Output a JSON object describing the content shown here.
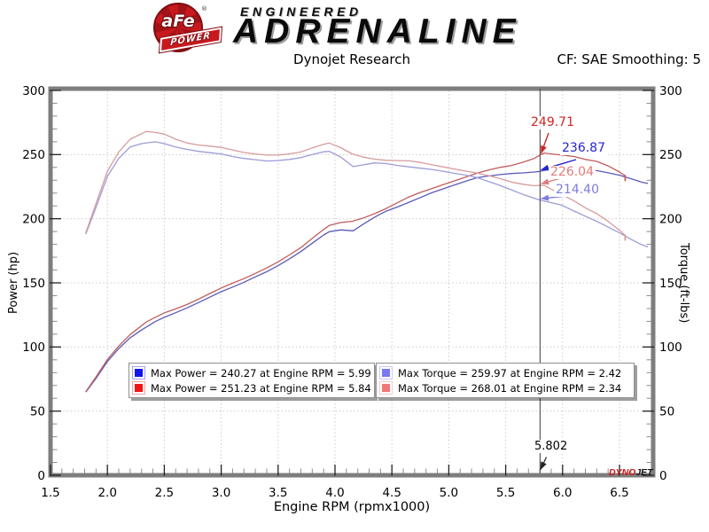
{
  "header": {
    "brand": {
      "logo_text": "aFe",
      "logo_reg": "®",
      "logo_sub": "POWER",
      "tagline_top": "ENGINEERED",
      "tagline_main": "ADRENALINE"
    },
    "title": "Dynojet Research",
    "smoothing": "CF: SAE Smoothing: 5"
  },
  "chart_data": {
    "type": "line",
    "title": "Dynojet Research",
    "xlabel": "Engine RPM (rpmx1000)",
    "ylabel_left": "Power (hp)",
    "ylabel_right": "Torque (ft-lbs)",
    "xlim": [
      1.5,
      6.8
    ],
    "ylim": [
      0,
      300
    ],
    "x_ticks": [
      "1.5",
      "2.0",
      "2.5",
      "3.0",
      "3.5",
      "4.0",
      "4.5",
      "5.0",
      "5.5",
      "6.0",
      "6.5"
    ],
    "y_ticks": [
      "0",
      "50",
      "100",
      "150",
      "200",
      "250",
      "300"
    ],
    "x_minor_step": 0.1,
    "y_minor_step": 10,
    "grid": "dotted",
    "series": [
      {
        "name": "power-run-blue",
        "axis": "left",
        "color": "#5a5ab8",
        "end_tick": false,
        "points": [
          [
            1.81,
            64.8
          ],
          [
            1.9,
            75.6
          ],
          [
            2.0,
            88.7
          ],
          [
            2.1,
            98.8
          ],
          [
            2.2,
            107.2
          ],
          [
            2.3,
            113.2
          ],
          [
            2.42,
            119.8
          ],
          [
            2.5,
            123.1
          ],
          [
            2.6,
            126.7
          ],
          [
            2.7,
            130.5
          ],
          [
            2.8,
            134.6
          ],
          [
            2.9,
            138.9
          ],
          [
            3.0,
            143.1
          ],
          [
            3.1,
            146.7
          ],
          [
            3.2,
            150.5
          ],
          [
            3.3,
            154.6
          ],
          [
            3.4,
            158.7
          ],
          [
            3.5,
            163.4
          ],
          [
            3.6,
            168.7
          ],
          [
            3.7,
            174.4
          ],
          [
            3.8,
            180.9
          ],
          [
            3.9,
            187.3
          ],
          [
            3.95,
            189.9
          ],
          [
            4.05,
            191.3
          ],
          [
            4.16,
            190.6
          ],
          [
            4.25,
            195.8
          ],
          [
            4.35,
            201.3
          ],
          [
            4.45,
            205.9
          ],
          [
            4.55,
            209.2
          ],
          [
            4.65,
            212.8
          ],
          [
            4.75,
            216.5
          ],
          [
            4.85,
            220.2
          ],
          [
            4.95,
            223.3
          ],
          [
            5.05,
            226.3
          ],
          [
            5.15,
            229.3
          ],
          [
            5.25,
            232.0
          ],
          [
            5.35,
            233.3
          ],
          [
            5.45,
            234.4
          ],
          [
            5.55,
            235.2
          ],
          [
            5.65,
            235.7
          ],
          [
            5.75,
            236.4
          ],
          [
            5.802,
            236.87
          ],
          [
            5.9,
            238.8
          ],
          [
            5.99,
            240.27
          ],
          [
            6.1,
            239.3
          ],
          [
            6.2,
            238.5
          ],
          [
            6.3,
            237.5
          ],
          [
            6.4,
            235.8
          ],
          [
            6.5,
            233.9
          ],
          [
            6.6,
            231.2
          ],
          [
            6.7,
            228.4
          ],
          [
            6.75,
            227.5
          ]
        ]
      },
      {
        "name": "power-run-red",
        "axis": "left",
        "color": "#c25c5c",
        "end_tick": true,
        "points": [
          [
            1.81,
            65.1
          ],
          [
            1.9,
            76.7
          ],
          [
            2.0,
            90.2
          ],
          [
            2.1,
            100.8
          ],
          [
            2.2,
            109.7
          ],
          [
            2.34,
            119.4
          ],
          [
            2.4,
            122.2
          ],
          [
            2.5,
            126.6
          ],
          [
            2.6,
            129.7
          ],
          [
            2.7,
            133.1
          ],
          [
            2.8,
            137.3
          ],
          [
            2.9,
            141.7
          ],
          [
            3.0,
            146.0
          ],
          [
            3.1,
            149.7
          ],
          [
            3.2,
            153.3
          ],
          [
            3.3,
            157.4
          ],
          [
            3.4,
            161.6
          ],
          [
            3.5,
            166.4
          ],
          [
            3.6,
            171.8
          ],
          [
            3.7,
            177.5
          ],
          [
            3.8,
            184.6
          ],
          [
            3.9,
            191.6
          ],
          [
            3.95,
            194.8
          ],
          [
            4.05,
            197.0
          ],
          [
            4.15,
            198.0
          ],
          [
            4.25,
            200.6
          ],
          [
            4.35,
            204.0
          ],
          [
            4.45,
            208.0
          ],
          [
            4.55,
            212.5
          ],
          [
            4.65,
            217.0
          ],
          [
            4.75,
            220.5
          ],
          [
            4.85,
            223.5
          ],
          [
            4.95,
            226.5
          ],
          [
            5.05,
            229.5
          ],
          [
            5.15,
            232.5
          ],
          [
            5.25,
            235.5
          ],
          [
            5.35,
            238.0
          ],
          [
            5.45,
            240.0
          ],
          [
            5.55,
            241.5
          ],
          [
            5.65,
            244.0
          ],
          [
            5.75,
            247.0
          ],
          [
            5.802,
            249.71
          ],
          [
            5.84,
            251.23
          ],
          [
            5.9,
            250.5
          ],
          [
            6.0,
            249.6
          ],
          [
            6.1,
            248.5
          ],
          [
            6.2,
            246.2
          ],
          [
            6.3,
            244.7
          ],
          [
            6.4,
            241.2
          ],
          [
            6.5,
            236.4
          ],
          [
            6.55,
            233.4
          ]
        ]
      },
      {
        "name": "torque-run-blue",
        "axis": "right",
        "color": "#9c9cd8",
        "end_tick": false,
        "points": [
          [
            1.81,
            188
          ],
          [
            1.9,
            209
          ],
          [
            2.0,
            233
          ],
          [
            2.1,
            247
          ],
          [
            2.2,
            256
          ],
          [
            2.3,
            258.5
          ],
          [
            2.42,
            259.97
          ],
          [
            2.5,
            258.5
          ],
          [
            2.6,
            256
          ],
          [
            2.7,
            254
          ],
          [
            2.8,
            252.5
          ],
          [
            2.9,
            251.5
          ],
          [
            3.0,
            250.5
          ],
          [
            3.1,
            248.5
          ],
          [
            3.2,
            247
          ],
          [
            3.3,
            246
          ],
          [
            3.4,
            245
          ],
          [
            3.5,
            245.3
          ],
          [
            3.6,
            246.2
          ],
          [
            3.7,
            247.6
          ],
          [
            3.8,
            250
          ],
          [
            3.9,
            252.2
          ],
          [
            3.95,
            252.5
          ],
          [
            4.05,
            248.1
          ],
          [
            4.16,
            240.6
          ],
          [
            4.25,
            242
          ],
          [
            4.35,
            243.5
          ],
          [
            4.45,
            243
          ],
          [
            4.55,
            241.5
          ],
          [
            4.65,
            240.4
          ],
          [
            4.75,
            239.4
          ],
          [
            4.85,
            238.4
          ],
          [
            4.95,
            237
          ],
          [
            5.05,
            235.4
          ],
          [
            5.15,
            234
          ],
          [
            5.25,
            232
          ],
          [
            5.35,
            229
          ],
          [
            5.45,
            226
          ],
          [
            5.55,
            222.5
          ],
          [
            5.65,
            219
          ],
          [
            5.75,
            216
          ],
          [
            5.802,
            214.4
          ],
          [
            5.9,
            212.5
          ],
          [
            5.99,
            210.7
          ],
          [
            6.1,
            206
          ],
          [
            6.2,
            202
          ],
          [
            6.3,
            198
          ],
          [
            6.4,
            193.5
          ],
          [
            6.5,
            189
          ],
          [
            6.6,
            184
          ],
          [
            6.7,
            179.5
          ],
          [
            6.75,
            178
          ]
        ]
      },
      {
        "name": "torque-run-red",
        "axis": "right",
        "color": "#d89c9c",
        "end_tick": true,
        "points": [
          [
            1.81,
            189
          ],
          [
            1.9,
            212
          ],
          [
            2.0,
            237
          ],
          [
            2.1,
            252
          ],
          [
            2.2,
            262
          ],
          [
            2.34,
            268.01
          ],
          [
            2.4,
            267.5
          ],
          [
            2.5,
            266
          ],
          [
            2.6,
            262
          ],
          [
            2.7,
            259
          ],
          [
            2.8,
            257.5
          ],
          [
            2.9,
            256.6
          ],
          [
            3.0,
            255.6
          ],
          [
            3.1,
            253.6
          ],
          [
            3.2,
            251.6
          ],
          [
            3.3,
            250.5
          ],
          [
            3.4,
            249.6
          ],
          [
            3.5,
            249.7
          ],
          [
            3.6,
            250.6
          ],
          [
            3.7,
            252
          ],
          [
            3.8,
            255.2
          ],
          [
            3.9,
            258
          ],
          [
            3.95,
            259
          ],
          [
            4.05,
            255.4
          ],
          [
            4.15,
            250.6
          ],
          [
            4.25,
            248
          ],
          [
            4.35,
            246.4
          ],
          [
            4.45,
            245.5
          ],
          [
            4.55,
            245.3
          ],
          [
            4.65,
            245.1
          ],
          [
            4.75,
            243.9
          ],
          [
            4.85,
            242.1
          ],
          [
            4.95,
            240.4
          ],
          [
            5.05,
            238.7
          ],
          [
            5.15,
            237.1
          ],
          [
            5.25,
            235.6
          ],
          [
            5.35,
            233.6
          ],
          [
            5.45,
            231.3
          ],
          [
            5.55,
            228.6
          ],
          [
            5.65,
            226.9
          ],
          [
            5.75,
            225.7
          ],
          [
            5.802,
            226.04
          ],
          [
            5.84,
            225.9
          ],
          [
            5.9,
            223.0
          ],
          [
            6.0,
            218.5
          ],
          [
            6.1,
            214.0
          ],
          [
            6.2,
            208.5
          ],
          [
            6.3,
            204.0
          ],
          [
            6.4,
            198.0
          ],
          [
            6.5,
            191.0
          ],
          [
            6.55,
            187.0
          ]
        ]
      }
    ],
    "cursor": {
      "rpm": 5.802,
      "label": "5.802",
      "readouts": [
        {
          "value": 249.71,
          "label": "249.71",
          "color": "#cc2626"
        },
        {
          "value": 236.87,
          "label": "236.87",
          "color": "#2626cc"
        },
        {
          "value": 226.04,
          "label": "226.04",
          "color": "#e07c7c"
        },
        {
          "value": 214.4,
          "label": "214.40",
          "color": "#7c7ce0"
        }
      ]
    },
    "legend": {
      "power": [
        {
          "swatch": "#1414f0",
          "label": "Max Power = 240.27 at Engine RPM = 5.99"
        },
        {
          "swatch": "#f01414",
          "label": "Max Power = 251.23 at Engine RPM = 5.84"
        }
      ],
      "torque": [
        {
          "swatch": "#7878f0",
          "label": "Max Torque = 259.97 at Engine RPM = 2.42"
        },
        {
          "swatch": "#f07878",
          "label": "Max Torque = 268.01 at Engine RPM = 2.34"
        }
      ]
    },
    "watermark": {
      "part1": "DYNO",
      "part2": "JET"
    }
  }
}
